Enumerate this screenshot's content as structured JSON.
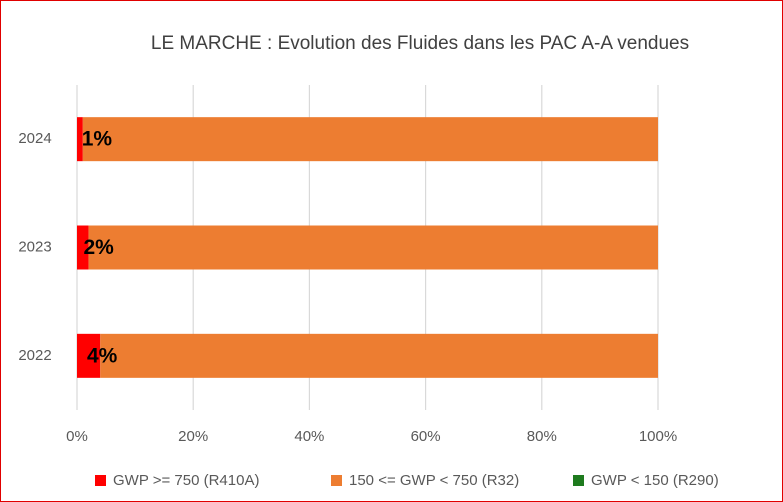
{
  "chart_data": {
    "type": "stacked_barh",
    "title": "LE MARCHE : Evolution des Fluides dans les PAC A-A vendues",
    "categories": [
      "2022",
      "2023",
      "2024"
    ],
    "series": [
      {
        "name": "GWP >= 750 (R410A)",
        "color": "#ff0000",
        "values": [
          4,
          2,
          1
        ],
        "value_labels": [
          "4%",
          "2%",
          "1%"
        ]
      },
      {
        "name": "150 <= GWP < 750 (R32)",
        "color": "#ed7d31",
        "values": [
          96,
          98,
          99
        ]
      },
      {
        "name": "GWP < 150 (R290)",
        "color": "#1e7b1e",
        "values": [
          0,
          0,
          0
        ]
      }
    ],
    "xlim": [
      0,
      100
    ],
    "xticks": [
      {
        "value": 0,
        "label": "0%"
      },
      {
        "value": 20,
        "label": "20%"
      },
      {
        "value": 40,
        "label": "40%"
      },
      {
        "value": 60,
        "label": "60%"
      },
      {
        "value": 80,
        "label": "80%"
      },
      {
        "value": 100,
        "label": "100%"
      }
    ],
    "grid": true,
    "legend": "bottom"
  }
}
